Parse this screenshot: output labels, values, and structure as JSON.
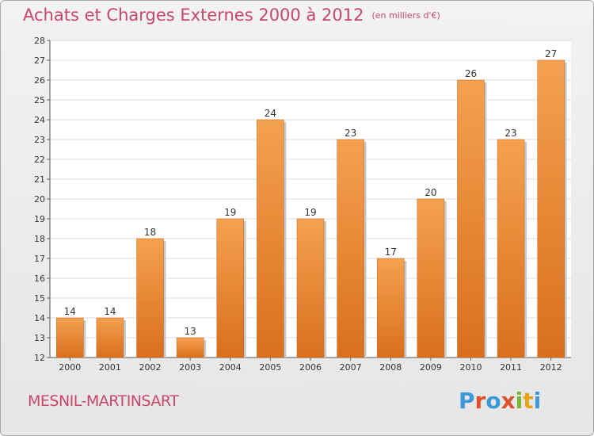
{
  "title": "Achats et Charges Externes 2000 à 2012",
  "unit": "(en milliers d'€)",
  "commune": "MESNIL-MARTINSART",
  "logo": {
    "text": "Proxiti",
    "letter_colors": [
      "#3a9ad9",
      "#e0502c",
      "#3a9ad9",
      "#e0502c",
      "#79b531",
      "#e8a317",
      "#3a9ad9"
    ]
  },
  "colors": {
    "bar_top": "#f4a14f",
    "bar_bottom": "#d96f1e",
    "title": "#c8466a"
  },
  "chart_data": {
    "type": "bar",
    "title": "Achats et Charges Externes 2000 à 2012",
    "xlabel": "",
    "ylabel": "",
    "categories": [
      "2000",
      "2001",
      "2002",
      "2003",
      "2004",
      "2005",
      "2006",
      "2007",
      "2008",
      "2009",
      "2010",
      "2011",
      "2012"
    ],
    "values": [
      14,
      14,
      18,
      13,
      19,
      24,
      19,
      23,
      17,
      20,
      26,
      23,
      27
    ],
    "ylim": [
      12,
      28
    ],
    "yticks": [
      12,
      13,
      14,
      15,
      16,
      17,
      18,
      19,
      20,
      21,
      22,
      23,
      24,
      25,
      26,
      27,
      28
    ],
    "grid": true,
    "legend": "none"
  }
}
